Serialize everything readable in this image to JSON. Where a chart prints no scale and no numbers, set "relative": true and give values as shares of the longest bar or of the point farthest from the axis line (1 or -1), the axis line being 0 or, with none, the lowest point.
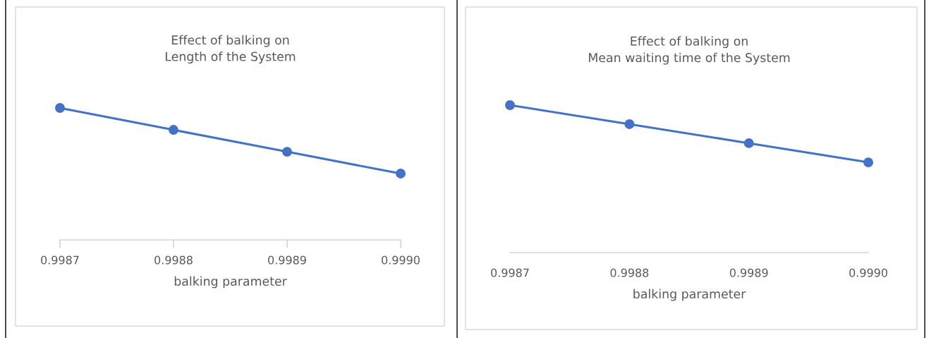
{
  "chart_data": [
    {
      "type": "line",
      "title": "Effect of balking on\nLength of the System",
      "xlabel": "balking parameter",
      "categories": [
        "0.9987",
        "0.9988",
        "0.9989",
        "0.9990"
      ],
      "relative": true,
      "marker": "circle",
      "series": [
        {
          "color": "#4472c4",
          "values": [
            1,
            0.834,
            0.668,
            0.503
          ]
        }
      ]
    },
    {
      "type": "line",
      "title": "Effect of balking on\nMean waiting time of the System",
      "xlabel": "balking parameter",
      "categories": [
        "0.9987",
        "0.9988",
        "0.9989",
        "0.9990"
      ],
      "relative": true,
      "marker": "circle",
      "series": [
        {
          "color": "#4472c4",
          "values": [
            1,
            0.871,
            0.742,
            0.612
          ]
        }
      ]
    }
  ]
}
